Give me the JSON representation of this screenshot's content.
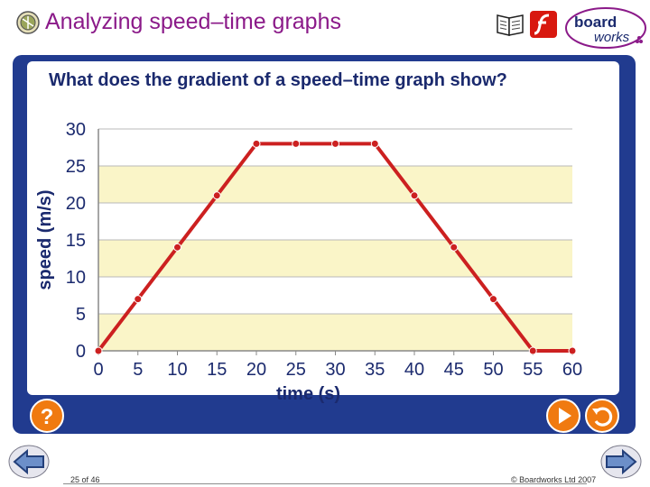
{
  "header": {
    "title": "Analyzing speed–time graphs",
    "logo_top": "board",
    "logo_bottom": "works"
  },
  "panel": {
    "question": "What does the gradient of a speed–time graph show?"
  },
  "chart_data": {
    "type": "line",
    "xlabel": "time (s)",
    "ylabel": "speed (m/s)",
    "x": [
      0,
      5,
      10,
      15,
      20,
      25,
      30,
      35,
      40,
      45,
      50,
      55,
      60
    ],
    "y": [
      0,
      7,
      14,
      21,
      28,
      28,
      28,
      28,
      21,
      14,
      7,
      0,
      0
    ],
    "xlim": [
      0,
      60
    ],
    "ylim": [
      0,
      30
    ],
    "xticks": [
      "0",
      "5",
      "10",
      "15",
      "20",
      "25",
      "30",
      "35",
      "40",
      "45",
      "50",
      "55",
      "60"
    ],
    "yticks": [
      "0",
      "5",
      "10",
      "15",
      "20",
      "25",
      "30"
    ],
    "grid": "horizontal",
    "band_colors": [
      "#faf5c8",
      "#ffffff"
    ],
    "line_color": "#cc2020",
    "marker_color": "#cc2020"
  },
  "controls": {
    "help_label": "?"
  },
  "footer": {
    "page": "25 of 46",
    "copyright": "© Boardworks Ltd 2007"
  },
  "colors": {
    "title": "#8b1a89",
    "panel": "#213b8f",
    "button": "#f07a10",
    "question": "#1b2a6e"
  }
}
